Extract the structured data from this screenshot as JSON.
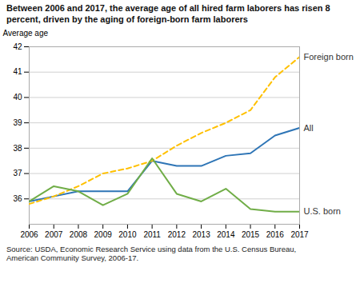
{
  "chart_data": {
    "type": "line",
    "title": "Between 2006 and 2017, the average age of all hired farm laborers has risen 8 percent, driven by the aging of foreign-born farm laborers",
    "ylabel": "Average age",
    "source": "Source: USDA, Economic Research Service using data from the U.S. Census Bureau,\nAmerican Community Survey, 2006-17.",
    "x": [
      2006,
      2007,
      2008,
      2009,
      2010,
      2011,
      2012,
      2013,
      2014,
      2015,
      2016,
      2017
    ],
    "series": [
      {
        "name": "All",
        "color": "#2E75B6",
        "line_style": "solid",
        "values": [
          35.9,
          36.1,
          36.3,
          36.3,
          36.3,
          37.5,
          37.3,
          37.3,
          37.7,
          37.8,
          38.5,
          38.8
        ]
      },
      {
        "name": "Foreign born",
        "color": "#FFC000",
        "line_style": "dashed",
        "values": [
          35.8,
          36.1,
          36.5,
          37.0,
          37.2,
          37.5,
          38.1,
          38.6,
          39.0,
          39.5,
          40.8,
          41.6
        ]
      },
      {
        "name": "U.S. born",
        "color": "#70AD47",
        "line_style": "solid",
        "values": [
          35.9,
          36.5,
          36.3,
          35.75,
          36.2,
          37.6,
          36.2,
          35.9,
          36.4,
          35.6,
          35.5,
          35.5
        ]
      }
    ],
    "xlim": [
      2006,
      2017
    ],
    "xticks": [
      2006,
      2007,
      2008,
      2009,
      2010,
      2011,
      2012,
      2013,
      2014,
      2015,
      2016,
      2017
    ],
    "ylim": [
      35,
      42
    ],
    "yticks": [
      36,
      37,
      38,
      39,
      40,
      41,
      42
    ],
    "grid": "y"
  }
}
